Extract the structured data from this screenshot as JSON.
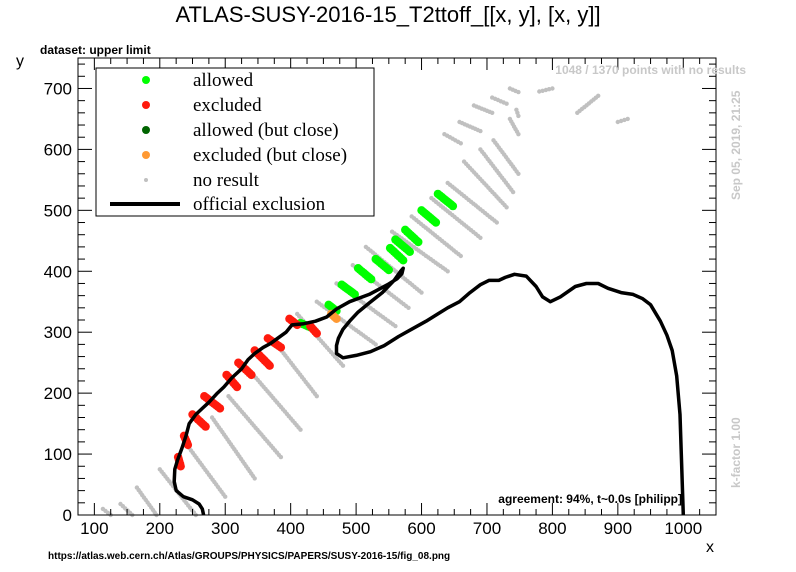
{
  "chart_data": {
    "type": "scatter",
    "title": "ATLAS-SUSY-2016-15_T2ttoff_[[x, y], [x, y]]",
    "dataset_label": "dataset: upper limit",
    "xlabel": "x",
    "ylabel": "y",
    "xlim": [
      75,
      1050
    ],
    "ylim": [
      0,
      750
    ],
    "x_ticks": [
      100,
      200,
      300,
      400,
      500,
      600,
      700,
      800,
      900,
      1000
    ],
    "y_ticks": [
      0,
      100,
      200,
      300,
      400,
      500,
      600,
      700
    ],
    "legend": {
      "placement": "top-left",
      "entries": [
        {
          "label": "allowed",
          "color": "#00ff00",
          "kind": "dot"
        },
        {
          "label": "excluded",
          "color": "#ff1a0d",
          "kind": "dot"
        },
        {
          "label": "allowed (but close)",
          "color": "#006400",
          "kind": "dot"
        },
        {
          "label": "excluded (but close)",
          "color": "#ff9933",
          "kind": "dot"
        },
        {
          "label": "no result",
          "color": "#c0c0c0",
          "kind": "small-dot"
        },
        {
          "label": "official exclusion",
          "color": "#000000",
          "kind": "line"
        }
      ]
    },
    "series": [
      {
        "name": "allowed",
        "color": "#00ff00",
        "segments": [
          [
            [
              415,
              315
            ],
            [
              430,
              308
            ]
          ],
          [
            [
              458,
              345
            ],
            [
              470,
              335
            ]
          ],
          [
            [
              478,
              378
            ],
            [
              498,
              362
            ]
          ],
          [
            [
              503,
              405
            ],
            [
              523,
              387
            ]
          ],
          [
            [
              530,
              420
            ],
            [
              550,
              402
            ]
          ],
          [
            [
              552,
              438
            ],
            [
              572,
              418
            ]
          ],
          [
            [
              560,
              452
            ],
            [
              582,
              432
            ]
          ],
          [
            [
              575,
              468
            ],
            [
              595,
              448
            ]
          ],
          [
            [
              600,
              500
            ],
            [
              622,
              480
            ]
          ],
          [
            [
              625,
              527
            ],
            [
              648,
              507
            ]
          ]
        ]
      },
      {
        "name": "excluded",
        "color": "#ff1a0d",
        "segments": [
          [
            [
              228,
              95
            ],
            [
              232,
              80
            ]
          ],
          [
            [
              237,
              130
            ],
            [
              243,
              115
            ]
          ],
          [
            [
              250,
              165
            ],
            [
              270,
              145
            ]
          ],
          [
            [
              268,
              195
            ],
            [
              292,
              175
            ]
          ],
          [
            [
              302,
              230
            ],
            [
              318,
              210
            ]
          ],
          [
            [
              320,
              250
            ],
            [
              340,
              230
            ]
          ],
          [
            [
              345,
              270
            ],
            [
              368,
              245
            ]
          ],
          [
            [
              365,
              290
            ],
            [
              385,
              275
            ]
          ],
          [
            [
              398,
              322
            ],
            [
              410,
              312
            ]
          ],
          [
            [
              430,
              310
            ],
            [
              440,
              298
            ]
          ]
        ]
      },
      {
        "name": "allowed (but close)",
        "color": "#006400",
        "segments": []
      },
      {
        "name": "excluded (but close)",
        "color": "#ff9933",
        "segments": [
          [
            [
              462,
              330
            ],
            [
              470,
              322
            ]
          ]
        ]
      },
      {
        "name": "no result",
        "color": "#c0c0c0",
        "segments": [
          [
            [
              113,
              10
            ],
            [
              125,
              0
            ]
          ],
          [
            [
              140,
              18
            ],
            [
              158,
              0
            ]
          ],
          [
            [
              165,
              45
            ],
            [
              195,
              0
            ]
          ],
          [
            [
              200,
              75
            ],
            [
              255,
              0
            ]
          ],
          [
            [
              245,
              110
            ],
            [
              300,
              30
            ]
          ],
          [
            [
              280,
              160
            ],
            [
              345,
              60
            ]
          ],
          [
            [
              305,
              195
            ],
            [
              385,
              95
            ]
          ],
          [
            [
              335,
              240
            ],
            [
              415,
              140
            ]
          ],
          [
            [
              375,
              285
            ],
            [
              440,
              195
            ]
          ],
          [
            [
              410,
              330
            ],
            [
              480,
              245
            ]
          ],
          [
            [
              440,
              350
            ],
            [
              530,
              280
            ]
          ],
          [
            [
              470,
              380
            ],
            [
              560,
              310
            ]
          ],
          [
            [
              495,
              410
            ],
            [
              580,
              340
            ]
          ],
          [
            [
              515,
              440
            ],
            [
              600,
              365
            ]
          ],
          [
            [
              555,
              465
            ],
            [
              640,
              400
            ]
          ],
          [
            [
              585,
              490
            ],
            [
              660,
              425
            ]
          ],
          [
            [
              615,
              520
            ],
            [
              690,
              455
            ]
          ],
          [
            [
              640,
              545
            ],
            [
              715,
              480
            ]
          ],
          [
            [
              665,
              580
            ],
            [
              730,
              505
            ]
          ],
          [
            [
              690,
              600
            ],
            [
              740,
              530
            ]
          ],
          [
            [
              710,
              615
            ],
            [
              748,
              560
            ]
          ],
          [
            [
              735,
              650
            ],
            [
              748,
              625
            ]
          ],
          [
            [
              745,
              665
            ],
            [
              748,
              655
            ]
          ],
          [
            [
              635,
              625
            ],
            [
              660,
              610
            ]
          ],
          [
            [
              658,
              645
            ],
            [
              690,
              630
            ]
          ],
          [
            [
              680,
              672
            ],
            [
              708,
              660
            ]
          ],
          [
            [
              708,
              685
            ],
            [
              730,
              675
            ]
          ],
          [
            [
              735,
              700
            ],
            [
              748,
              694
            ]
          ],
          [
            [
              780,
              695
            ],
            [
              800,
              700
            ]
          ],
          [
            [
              838,
              660
            ],
            [
              870,
              688
            ]
          ],
          [
            [
              900,
              645
            ],
            [
              915,
              650
            ]
          ]
        ]
      }
    ],
    "official_exclusion": [
      [
        267,
        0
      ],
      [
        265,
        10
      ],
      [
        260,
        18
      ],
      [
        250,
        25
      ],
      [
        236,
        30
      ],
      [
        225,
        40
      ],
      [
        222,
        55
      ],
      [
        223,
        75
      ],
      [
        227,
        90
      ],
      [
        234,
        110
      ],
      [
        240,
        130
      ],
      [
        245,
        150
      ],
      [
        255,
        165
      ],
      [
        265,
        175
      ],
      [
        275,
        185
      ],
      [
        288,
        200
      ],
      [
        298,
        210
      ],
      [
        310,
        225
      ],
      [
        325,
        240
      ],
      [
        335,
        255
      ],
      [
        345,
        265
      ],
      [
        358,
        275
      ],
      [
        370,
        282
      ],
      [
        380,
        290
      ],
      [
        393,
        300
      ],
      [
        402,
        312
      ],
      [
        420,
        314
      ],
      [
        438,
        318
      ],
      [
        455,
        325
      ],
      [
        470,
        338
      ],
      [
        490,
        350
      ],
      [
        520,
        362
      ],
      [
        548,
        378
      ],
      [
        563,
        388
      ],
      [
        570,
        396
      ],
      [
        572,
        405
      ],
      [
        568,
        400
      ],
      [
        558,
        385
      ],
      [
        540,
        365
      ],
      [
        520,
        348
      ],
      [
        503,
        333
      ],
      [
        490,
        318
      ],
      [
        480,
        305
      ],
      [
        473,
        290
      ],
      [
        470,
        278
      ],
      [
        470,
        265
      ],
      [
        480,
        258
      ],
      [
        500,
        262
      ],
      [
        522,
        268
      ],
      [
        543,
        278
      ],
      [
        565,
        293
      ],
      [
        585,
        305
      ],
      [
        607,
        318
      ],
      [
        625,
        330
      ],
      [
        640,
        340
      ],
      [
        658,
        350
      ],
      [
        674,
        365
      ],
      [
        690,
        378
      ],
      [
        703,
        385
      ],
      [
        718,
        385
      ],
      [
        728,
        390
      ],
      [
        742,
        395
      ],
      [
        760,
        392
      ],
      [
        775,
        375
      ],
      [
        785,
        358
      ],
      [
        797,
        350
      ],
      [
        812,
        358
      ],
      [
        835,
        375
      ],
      [
        852,
        380
      ],
      [
        870,
        380
      ],
      [
        885,
        372
      ],
      [
        905,
        365
      ],
      [
        923,
        362
      ],
      [
        938,
        355
      ],
      [
        950,
        345
      ],
      [
        965,
        318
      ],
      [
        975,
        295
      ],
      [
        983,
        270
      ],
      [
        990,
        228
      ],
      [
        995,
        165
      ],
      [
        997,
        100
      ],
      [
        1000,
        0
      ]
    ]
  },
  "annotations": {
    "points_without_results": "1048 / 1370 points with no results",
    "date": "Sep 05, 2019, 21:25",
    "k_factor": "k-factor 1.00",
    "agreement": "agreement: 94%, t~0.0s [philipp]",
    "source_url": "https://atlas.web.cern.ch/Atlas/GROUPS/PHYSICS/PAPERS/SUSY-2016-15/fig_08.png"
  }
}
